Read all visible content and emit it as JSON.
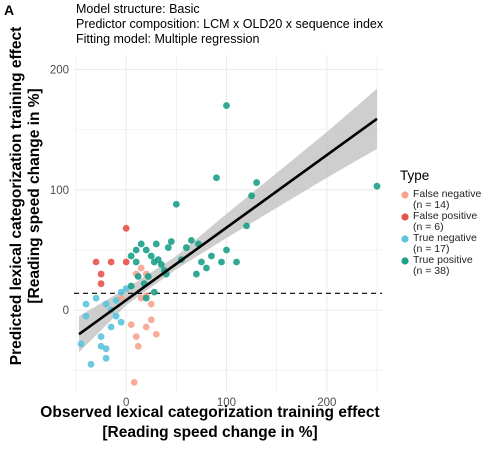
{
  "panel_label": "A",
  "info": {
    "line1": "Model structure: Basic",
    "line2": "Predictor composition: LCM x OLD20 x sequence index",
    "line3": "Fitting model: Multiple regression"
  },
  "colors": {
    "false_negative": "#F8A38F",
    "false_positive": "#E8524A",
    "true_negative": "#5BC4DC",
    "true_positive": "#1BA08A",
    "ribbon": "#BDBDBD",
    "grid": "#EBEBEB"
  },
  "chart_data": {
    "type": "scatter",
    "xlabel_line1": "Observed lexical categorization training effect",
    "xlabel_line2": "[Reading speed change in %]",
    "ylabel_line1": "Predicted lexical categorization training effect",
    "ylabel_line2": "[Reading speed change in %]",
    "xlim": [
      -52,
      255
    ],
    "ylim": [
      -68,
      212
    ],
    "x_ticks": [
      0,
      100,
      200
    ],
    "y_ticks": [
      0,
      100,
      200
    ],
    "x_tick_labels": [
      "0",
      "100",
      "200"
    ],
    "y_tick_labels": [
      "0",
      "100",
      "200"
    ],
    "grid": true,
    "legend_position": "right",
    "legend": {
      "title": "Type",
      "entries": [
        {
          "key": "false_negative",
          "label1": "False negative",
          "label2": "(n = 14)"
        },
        {
          "key": "false_positive",
          "label1": "False positive",
          "label2": "(n = 6)"
        },
        {
          "key": "true_negative",
          "label1": "True negative",
          "label2": "(n = 17)"
        },
        {
          "key": "true_positive",
          "label1": "True positive",
          "label2": "(n = 38)"
        }
      ]
    },
    "reference_line_y": 14,
    "fit_line": {
      "x": [
        -47,
        250
      ],
      "y": [
        -20,
        159
      ]
    },
    "confidence_band": {
      "x": [
        -47,
        0,
        50,
        100,
        150,
        200,
        250
      ],
      "lower": [
        -35,
        4,
        34,
        60,
        85,
        110,
        134
      ],
      "upper": [
        -5,
        18,
        45,
        80,
        114,
        148,
        184
      ]
    },
    "series": [
      {
        "key": "false_negative",
        "points": [
          [
            10,
            30
          ],
          [
            15,
            35
          ],
          [
            20,
            30
          ],
          [
            -5,
            10
          ],
          [
            15,
            10
          ],
          [
            20,
            12
          ],
          [
            25,
            5
          ],
          [
            25,
            -8
          ],
          [
            20,
            -14
          ],
          [
            30,
            -20
          ],
          [
            10,
            -22
          ],
          [
            5,
            -12
          ],
          [
            12,
            -30
          ],
          [
            8,
            -60
          ]
        ]
      },
      {
        "key": "false_positive",
        "points": [
          [
            -30,
            40
          ],
          [
            -25,
            22
          ],
          [
            -25,
            30
          ],
          [
            -15,
            40
          ],
          [
            0,
            40
          ],
          [
            0,
            68
          ]
        ]
      },
      {
        "key": "true_negative",
        "points": [
          [
            -40,
            -5
          ],
          [
            -40,
            5
          ],
          [
            -45,
            -28
          ],
          [
            -25,
            -22
          ],
          [
            -25,
            -30
          ],
          [
            -20,
            -32
          ],
          [
            -20,
            -40
          ],
          [
            -15,
            -14
          ],
          [
            -10,
            -5
          ],
          [
            -20,
            5
          ],
          [
            -30,
            10
          ],
          [
            -35,
            -45
          ],
          [
            -5,
            -10
          ],
          [
            -15,
            0
          ],
          [
            -10,
            8
          ],
          [
            0,
            18
          ],
          [
            -5,
            15
          ]
        ]
      },
      {
        "key": "true_positive",
        "points": [
          [
            5,
            45
          ],
          [
            10,
            40
          ],
          [
            10,
            50
          ],
          [
            15,
            55
          ],
          [
            20,
            50
          ],
          [
            25,
            45
          ],
          [
            28,
            40
          ],
          [
            30,
            55
          ],
          [
            32,
            42
          ],
          [
            35,
            38
          ],
          [
            38,
            33
          ],
          [
            40,
            30
          ],
          [
            42,
            52
          ],
          [
            45,
            57
          ],
          [
            50,
            88
          ],
          [
            55,
            42
          ],
          [
            60,
            52
          ],
          [
            65,
            58
          ],
          [
            70,
            30
          ],
          [
            72,
            55
          ],
          [
            75,
            40
          ],
          [
            80,
            35
          ],
          [
            85,
            45
          ],
          [
            90,
            110
          ],
          [
            95,
            40
          ],
          [
            100,
            50
          ],
          [
            100,
            170
          ],
          [
            110,
            40
          ],
          [
            120,
            70
          ],
          [
            125,
            95
          ],
          [
            130,
            106
          ],
          [
            22,
            28
          ],
          [
            18,
            22
          ],
          [
            12,
            28
          ],
          [
            28,
            15
          ],
          [
            5,
            20
          ],
          [
            20,
            10
          ],
          [
            250,
            103
          ]
        ]
      }
    ]
  }
}
